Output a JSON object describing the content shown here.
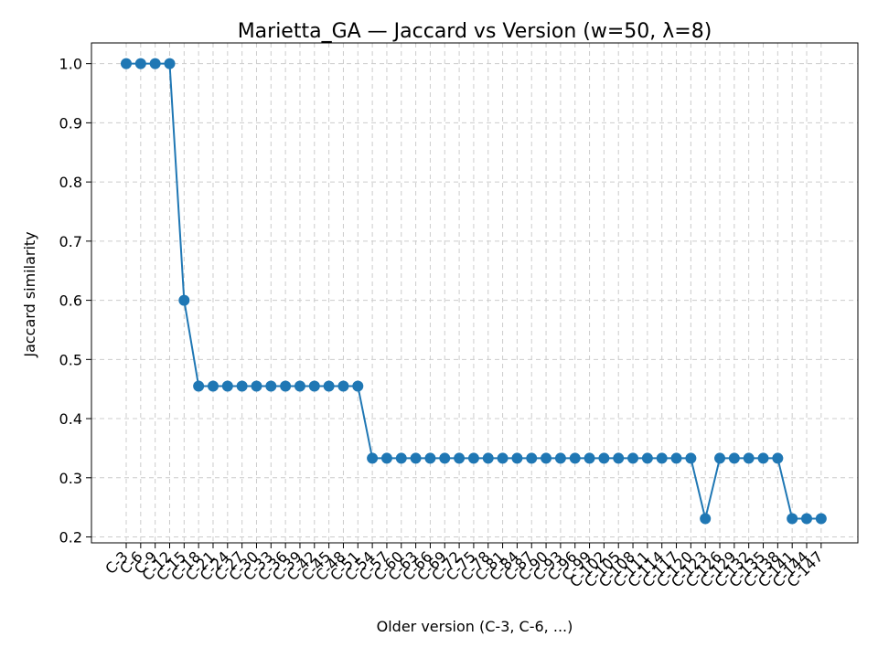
{
  "chart_data": {
    "type": "line",
    "title": "Marietta_GA — Jaccard vs Version (w=50, λ=8)",
    "xlabel": "Older version (C-3, C-6, ...)",
    "ylabel": "Jaccard similarity",
    "ylim": [
      0.19,
      1.035
    ],
    "yticks": [
      0.2,
      0.3,
      0.4,
      0.5,
      0.6,
      0.7,
      0.8,
      0.9,
      1.0
    ],
    "ytick_labels": [
      "0.2",
      "0.3",
      "0.4",
      "0.5",
      "0.6",
      "0.7",
      "0.8",
      "0.9",
      "1.0"
    ],
    "grid": true,
    "color": "#1f77b4",
    "categories": [
      "C-3",
      "C-6",
      "C-9",
      "C-12",
      "C-15",
      "C-18",
      "C-21",
      "C-24",
      "C-27",
      "C-30",
      "C-33",
      "C-36",
      "C-39",
      "C-42",
      "C-45",
      "C-48",
      "C-51",
      "C-54",
      "C-57",
      "C-60",
      "C-63",
      "C-66",
      "C-69",
      "C-72",
      "C-75",
      "C-78",
      "C-81",
      "C-84",
      "C-87",
      "C-90",
      "C-93",
      "C-96",
      "C-99",
      "C-102",
      "C-105",
      "C-108",
      "C-111",
      "C-114",
      "C-117",
      "C-120",
      "C-123",
      "C-126",
      "C-129",
      "C-132",
      "C-135",
      "C-138",
      "C-141",
      "C-144",
      "C-147"
    ],
    "values": [
      1.0,
      1.0,
      1.0,
      1.0,
      0.6,
      0.455,
      0.455,
      0.455,
      0.455,
      0.455,
      0.455,
      0.455,
      0.455,
      0.455,
      0.455,
      0.455,
      0.455,
      0.333,
      0.333,
      0.333,
      0.333,
      0.333,
      0.333,
      0.333,
      0.333,
      0.333,
      0.333,
      0.333,
      0.333,
      0.333,
      0.333,
      0.333,
      0.333,
      0.333,
      0.333,
      0.333,
      0.333,
      0.333,
      0.333,
      0.333,
      0.231,
      0.333,
      0.333,
      0.333,
      0.333,
      0.333,
      0.231,
      0.231,
      0.231
    ]
  }
}
